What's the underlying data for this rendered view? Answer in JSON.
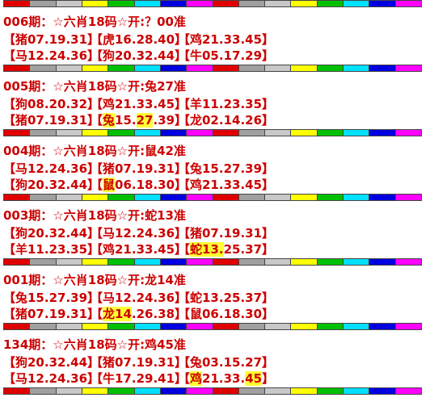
{
  "colors": {
    "text": "#cc0000",
    "highlight": "#ffff33",
    "stripe": [
      "#e00000",
      "#a0a0a0",
      "#c8c8c8",
      "#ffff00",
      "#00c000",
      "#00e0ff",
      "#0000e0",
      "#ff00ff",
      "#e00000",
      "#a0a0a0",
      "#c8c8c8",
      "#ffff00",
      "#00c000",
      "#00e0ff",
      "#0000e0",
      "#ff00ff"
    ]
  },
  "records": [
    {
      "title": "006期：☆六肖18码☆开:？00准",
      "rows": [
        [
          {
            "pre": "【猪07.19.31】",
            "hl": "",
            "post": ""
          },
          {
            "pre": "【虎16.28.40】",
            "hl": "",
            "post": ""
          },
          {
            "pre": "【鸡21.33.45】",
            "hl": "",
            "post": ""
          }
        ],
        [
          {
            "pre": "【马12.24.36】",
            "hl": "",
            "post": ""
          },
          {
            "pre": "【狗20.32.44】",
            "hl": "",
            "post": ""
          },
          {
            "pre": "【牛05.17.29】",
            "hl": "",
            "post": ""
          }
        ]
      ]
    },
    {
      "title": "005期：☆六肖18码☆开:兔27准",
      "rows": [
        [
          {
            "pre": "【狗08.20.32】",
            "hl": "",
            "post": ""
          },
          {
            "pre": "【鸡21.33.45】",
            "hl": "",
            "post": ""
          },
          {
            "pre": "【羊11.23.35】",
            "hl": "",
            "post": ""
          }
        ],
        [
          {
            "pre": "【猪07.19.31】",
            "hl": "",
            "post": ""
          },
          {
            "pre": "【",
            "hl": "兔",
            "post": "15.",
            "hl2": "27",
            "post2": ".39】"
          },
          {
            "pre": "【龙02.14.26】",
            "hl": "",
            "post": ""
          }
        ]
      ]
    },
    {
      "title": "004期：☆六肖18码☆开:鼠42准",
      "rows": [
        [
          {
            "pre": "【马12.24.36】",
            "hl": "",
            "post": ""
          },
          {
            "pre": "【猪07.19.31】",
            "hl": "",
            "post": ""
          },
          {
            "pre": "【兔15.27.39】",
            "hl": "",
            "post": ""
          }
        ],
        [
          {
            "pre": "【狗20.32.44】",
            "hl": "",
            "post": ""
          },
          {
            "pre": "【",
            "hl": "鼠",
            "post": "06.18.30】"
          },
          {
            "pre": "【鸡21.33.45】",
            "hl": "",
            "post": ""
          }
        ]
      ]
    },
    {
      "title": "003期：☆六肖18码☆开:蛇13准",
      "rows": [
        [
          {
            "pre": "【狗20.32.44】",
            "hl": "",
            "post": ""
          },
          {
            "pre": "【马12.24.36】",
            "hl": "",
            "post": ""
          },
          {
            "pre": "【猪07.19.31】",
            "hl": "",
            "post": ""
          }
        ],
        [
          {
            "pre": "【羊11.23.35】",
            "hl": "",
            "post": ""
          },
          {
            "pre": "【鸡21.33.45】",
            "hl": "",
            "post": ""
          },
          {
            "pre": "【",
            "hl": "蛇13.",
            "post": "25.37】"
          }
        ]
      ]
    },
    {
      "title": "001期：☆六肖18码☆开:龙14准",
      "rows": [
        [
          {
            "pre": "【兔15.27.39】",
            "hl": "",
            "post": ""
          },
          {
            "pre": "【马12.24.36】",
            "hl": "",
            "post": ""
          },
          {
            "pre": "【蛇13.25.37】",
            "hl": "",
            "post": ""
          }
        ],
        [
          {
            "pre": "【猪07.19.31】",
            "hl": "",
            "post": ""
          },
          {
            "pre": "【",
            "hl": "龙14",
            "post": ".26.38】"
          },
          {
            "pre": "【鼠06.18.30】",
            "hl": "",
            "post": ""
          }
        ]
      ]
    },
    {
      "title": "134期：☆六肖18码☆开:鸡45准",
      "rows": [
        [
          {
            "pre": "【狗20.32.44】",
            "hl": "",
            "post": ""
          },
          {
            "pre": "【猪07.19.31】",
            "hl": "",
            "post": ""
          },
          {
            "pre": "【兔03.15.27】",
            "hl": "",
            "post": ""
          }
        ],
        [
          {
            "pre": "【马12.24.36】",
            "hl": "",
            "post": ""
          },
          {
            "pre": "【牛17.29.41】",
            "hl": "",
            "post": ""
          },
          {
            "pre": "【",
            "hl": "鸡",
            "post": "21.33.",
            "hl2": "45",
            "post2": "】"
          }
        ]
      ]
    }
  ]
}
